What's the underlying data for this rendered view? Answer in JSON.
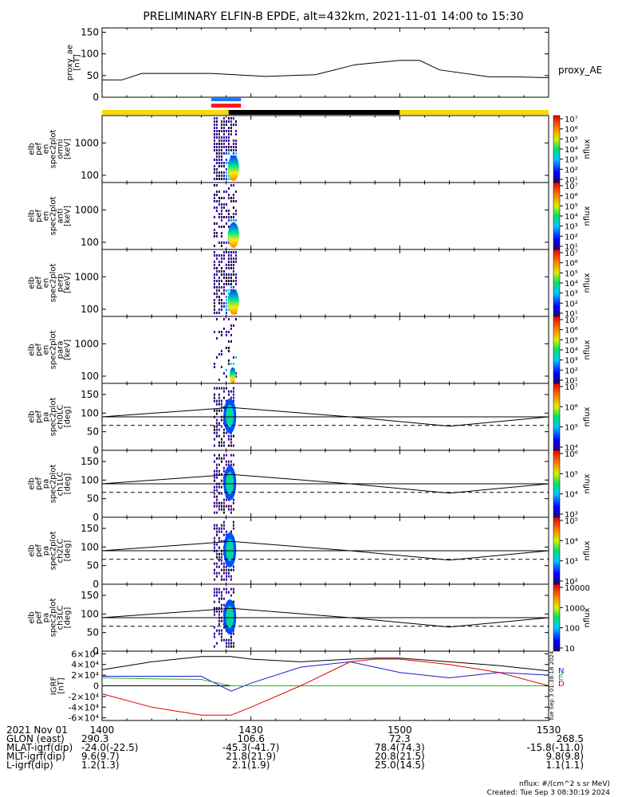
{
  "title": "PRELIMINARY ELFIN-B EPDE, alt=432km, 2021-11-01 14:00 to 15:30",
  "colors": {
    "bar_yellow": "#f5d90a",
    "bar_black": "#000000",
    "bar_blue": "#1e78ff",
    "bar_red": "#ff1a1a",
    "grf_n": "#1a1acc",
    "grf_e": "#22b022",
    "grf_d": "#e00000"
  },
  "ae_panel": {
    "ylabel": "proxy_ae\n[nT]",
    "yticks": [
      "0",
      "50",
      "100",
      "150"
    ],
    "series_label": "proxy_AE"
  },
  "spectrogram_panels": [
    {
      "ylabel": "elb\npef\nen\nspec2plot\nomni\n[keV]",
      "yticks": [
        "100",
        "1000"
      ],
      "cbar_label": "nflux",
      "cbar_ticks": [
        "10¹",
        "10²",
        "10³",
        "10⁴",
        "10⁵",
        "10⁶",
        "10⁷"
      ]
    },
    {
      "ylabel": "elb\npef\nen\nspec2plot\nanti\n[keV]",
      "yticks": [
        "100",
        "1000"
      ],
      "cbar_label": "nflux",
      "cbar_ticks": [
        "10¹",
        "10²",
        "10³",
        "10⁴",
        "10⁵",
        "10⁶",
        "10⁷"
      ]
    },
    {
      "ylabel": "elb\npef\nen\nspec2plot\nperp\n[keV]",
      "yticks": [
        "100",
        "1000"
      ],
      "cbar_label": "nflux",
      "cbar_ticks": [
        "10¹",
        "10²",
        "10³",
        "10⁴",
        "10⁵",
        "10⁶",
        "10⁷"
      ]
    },
    {
      "ylabel": "elb\npef\nen\nspec2plot\npara\n[keV]",
      "yticks": [
        "100",
        "1000"
      ],
      "cbar_label": "nflux",
      "cbar_ticks": [
        "10¹",
        "10²",
        "10³",
        "10⁴",
        "10⁵",
        "10⁶",
        "10⁷"
      ]
    }
  ],
  "pitch_panels": [
    {
      "ylabel": "elb\npef\npa\nspec2plot\nch0LC\n[deg]",
      "yticks": [
        "0",
        "50",
        "100",
        "150"
      ],
      "cbar_label": "nflux",
      "cbar_ticks": [
        "10⁴",
        "10⁵",
        "10⁶",
        "10⁷"
      ]
    },
    {
      "ylabel": "elb\npef\npa\nspec2plot\nch1LC\n[deg]",
      "yticks": [
        "0",
        "50",
        "100",
        "150"
      ],
      "cbar_label": "nflux",
      "cbar_ticks": [
        "10³",
        "10⁴",
        "10⁵",
        "10⁶"
      ]
    },
    {
      "ylabel": "elb\npef\npa\nspec2plot\nch2LC\n[deg]",
      "yticks": [
        "0",
        "50",
        "100",
        "150"
      ],
      "cbar_label": "nflux",
      "cbar_ticks": [
        "10²",
        "10³",
        "10⁴",
        "10⁵"
      ]
    },
    {
      "ylabel": "elb\npef\npa\nspec2plot\nch3LC\n[deg]",
      "yticks": [
        "0",
        "50",
        "100",
        "150"
      ],
      "cbar_label": "nflux",
      "cbar_ticks": [
        "10",
        "100",
        "1000",
        "10000"
      ]
    }
  ],
  "grf_panel": {
    "ylabel": "IGRF\n[nT]",
    "yticks": [
      "-6×10⁴",
      "-4×10⁴",
      "-2×10⁴",
      "0",
      "2×10⁴",
      "4×10⁴",
      "6×10⁴"
    ],
    "legend": [
      "N",
      "E",
      "D"
    ],
    "side_note": "Tue Sep  3 01:38:18 2024"
  },
  "orbit_table": {
    "row_labels": [
      "2021 Nov 01",
      "GLON (east)",
      "MLAT-igrf(dip)",
      "MLT-igrf(dip)",
      "L-igrf(dip)"
    ],
    "columns": [
      [
        "1400",
        "290.3",
        "-24.0(-22.5)",
        "9.6(9.7)",
        "1.2(1.3)"
      ],
      [
        "1430",
        "106.6",
        "-45.3(-41.7)",
        "21.8(21.9)",
        "2.1(1.9)"
      ],
      [
        "1500",
        "72.3",
        "78.4(74.3)",
        "20.8(21.5)",
        "25.0(14.5)"
      ],
      [
        "1530",
        "268.5",
        "-15.8(-11.0)",
        "9.8(9.8)",
        "1.1(1.1)"
      ]
    ]
  },
  "footer": {
    "units": "nflux: #/(cm^2 s sr MeV)",
    "created": "Created: Tue Sep  3 08:30:19 2024"
  },
  "chart_data": {
    "type": "line",
    "x_range": [
      "2021-11-01 14:00",
      "2021-11-01 15:30"
    ],
    "xticks": [
      "1400",
      "1430",
      "1500",
      "1530"
    ],
    "proxy_ae": {
      "name": "proxy_AE",
      "ylim": [
        0,
        160
      ],
      "x_min": [
        0,
        4,
        8,
        22,
        33,
        43,
        51,
        60,
        64,
        68,
        78,
        83,
        90
      ],
      "values": [
        40,
        40,
        55,
        55,
        48,
        52,
        75,
        85,
        85,
        63,
        47,
        47,
        45
      ]
    },
    "instrument_bar": {
      "segments": [
        {
          "color": "yellow",
          "from_min": 0,
          "to_min": 25.5
        },
        {
          "color": "black",
          "from_min": 25.5,
          "to_min": 60
        },
        {
          "color": "yellow",
          "from_min": 60,
          "to_min": 90
        }
      ],
      "science_zone": {
        "from_min": 22,
        "to_min": 28
      }
    },
    "spectrograms": {
      "energy_ylim_keV": [
        60,
        7000
      ],
      "time_window_min": [
        22,
        28
      ]
    },
    "pitch_angle": {
      "ylim": [
        0,
        180
      ],
      "solid_line_values": [
        90,
        115,
        90,
        65,
        90
      ],
      "solid_line_x_min": [
        0,
        26,
        50,
        70,
        90
      ],
      "reference_line": 90,
      "dashed_line_value": 67
    },
    "igrf": {
      "ylim": [
        -65000,
        65000
      ],
      "x_min": [
        0,
        10,
        20,
        26,
        30,
        40,
        50,
        55,
        60,
        70,
        80,
        90
      ],
      "series": [
        {
          "name": "N",
          "values": [
            18000,
            18000,
            18000,
            -10000,
            5000,
            35000,
            45000,
            35000,
            25000,
            15000,
            25000,
            20000
          ]
        },
        {
          "name": "E",
          "values": [
            15000,
            13000,
            12000,
            0,
            0,
            0,
            0,
            0,
            0,
            0,
            0,
            0
          ]
        },
        {
          "name": "D",
          "values": [
            -15000,
            -40000,
            -55000,
            -55000,
            -40000,
            0,
            45000,
            50000,
            50000,
            40000,
            25000,
            0
          ]
        },
        {
          "name": "Total",
          "values": [
            30000,
            45000,
            55000,
            55000,
            50000,
            45000,
            50000,
            52000,
            52000,
            45000,
            38000,
            28000
          ]
        }
      ]
    }
  }
}
